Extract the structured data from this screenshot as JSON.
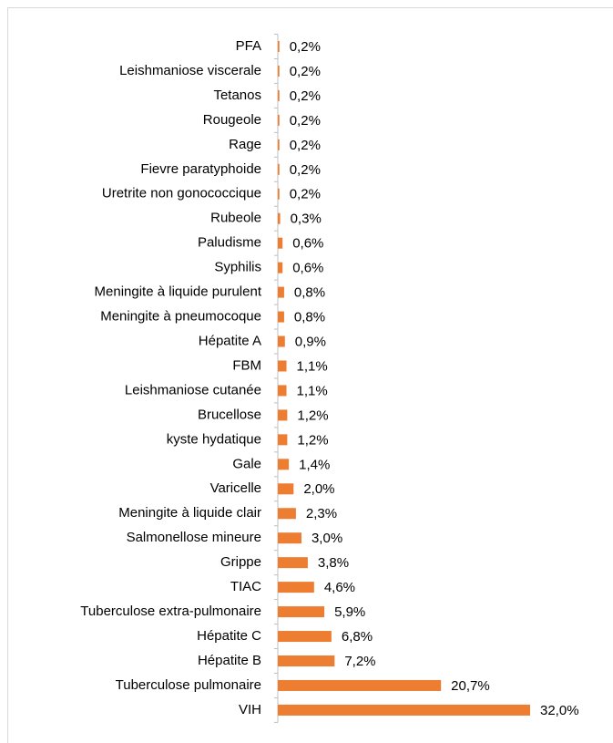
{
  "chart_data": {
    "type": "bar",
    "orientation": "horizontal",
    "color": "#ed7d31",
    "categories": [
      "PFA",
      "Leishmaniose viscerale",
      "Tetanos",
      "Rougeole",
      "Rage",
      "Fievre paratyphoide",
      "Uretrite non gonococcique",
      "Rubeole",
      "Paludisme",
      "Syphilis",
      "Meningite à liquide purulent",
      "Meningite à pneumocoque",
      "Hépatite A",
      "FBM",
      "Leishmaniose cutanée",
      "Brucellose",
      "kyste hydatique",
      "Gale",
      "Varicelle",
      "Meningite à liquide clair",
      "Salmonellose mineure",
      "Grippe",
      "TIAC",
      "Tuberculose extra-pulmonaire",
      "Hépatite C",
      "Hépatite B",
      "Tuberculose pulmonaire",
      "VIH"
    ],
    "values": [
      0.2,
      0.2,
      0.2,
      0.2,
      0.2,
      0.2,
      0.2,
      0.3,
      0.6,
      0.6,
      0.8,
      0.8,
      0.9,
      1.1,
      1.1,
      1.2,
      1.2,
      1.4,
      2.0,
      2.3,
      3.0,
      3.8,
      4.6,
      5.9,
      6.8,
      7.2,
      20.7,
      32.0
    ],
    "value_labels": [
      "0,2%",
      "0,2%",
      "0,2%",
      "0,2%",
      "0,2%",
      "0,2%",
      "0,2%",
      "0,3%",
      "0,6%",
      "0,6%",
      "0,8%",
      "0,8%",
      "0,9%",
      "1,1%",
      "1,1%",
      "1,2%",
      "1,2%",
      "1,4%",
      "2,0%",
      "2,3%",
      "3,0%",
      "3,8%",
      "4,6%",
      "5,9%",
      "6,8%",
      "7,2%",
      "20,7%",
      "32,0%"
    ]
  }
}
